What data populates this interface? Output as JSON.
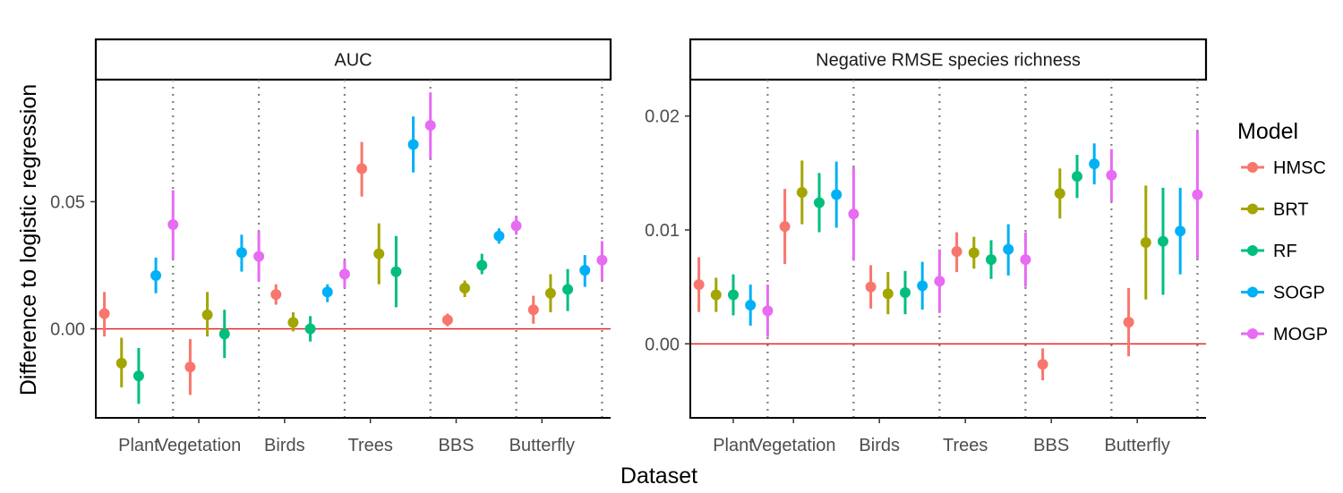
{
  "figure": {
    "ylabel": "Difference to logistic regression",
    "xlabel": "Dataset"
  },
  "legend": {
    "title": "Model",
    "placement": "right"
  },
  "chart_data": {
    "type": "scatter",
    "subtype": "pointrange",
    "categories": [
      "Plant",
      "Vegetation",
      "Birds",
      "Trees",
      "BBS",
      "Butterfly"
    ],
    "models": [
      {
        "name": "HMSC",
        "color": "#F8766D"
      },
      {
        "name": "BRT",
        "color": "#A3A500"
      },
      {
        "name": "RF",
        "color": "#00BF7D"
      },
      {
        "name": "SOGP",
        "color": "#00B0F6"
      },
      {
        "name": "MOGP",
        "color": "#E76BF3"
      }
    ],
    "grid": false,
    "reference_line": {
      "y": 0,
      "color": "#E41A1C"
    },
    "panels": [
      {
        "title": "AUC",
        "ylim": [
          -0.035,
          0.098
        ],
        "yticks": [
          0.0,
          0.05
        ],
        "ytick_labels": [
          "0.00",
          "0.05"
        ],
        "series": [
          {
            "name": "HMSC",
            "values": [
              0.006,
              -0.015,
              0.0135,
              0.063,
              0.0035,
              0.0075
            ],
            "lower": [
              -0.003,
              -0.026,
              0.0095,
              0.052,
              0.001,
              0.002
            ],
            "upper": [
              0.0145,
              -0.004,
              0.0175,
              0.0735,
              0.006,
              0.013
            ]
          },
          {
            "name": "BRT",
            "values": [
              -0.0135,
              0.0055,
              0.0025,
              0.0295,
              0.016,
              0.014
            ],
            "lower": [
              -0.023,
              -0.003,
              -0.001,
              0.0175,
              0.0125,
              0.0065
            ],
            "upper": [
              -0.0035,
              0.0145,
              0.0065,
              0.0415,
              0.019,
              0.0215
            ]
          },
          {
            "name": "RF",
            "values": [
              -0.0185,
              -0.002,
              0.0,
              0.0225,
              0.025,
              0.0155
            ],
            "lower": [
              -0.0295,
              -0.0115,
              -0.005,
              0.0085,
              0.0215,
              0.007
            ],
            "upper": [
              -0.0075,
              0.0075,
              0.005,
              0.0365,
              0.0295,
              0.0235
            ]
          },
          {
            "name": "SOGP",
            "values": [
              0.021,
              0.03,
              0.0145,
              0.0725,
              0.0365,
              0.023
            ],
            "lower": [
              0.014,
              0.0225,
              0.0105,
              0.0615,
              0.0335,
              0.0165
            ],
            "upper": [
              0.028,
              0.037,
              0.0175,
              0.0835,
              0.0395,
              0.029
            ]
          },
          {
            "name": "MOGP",
            "values": [
              0.041,
              0.0285,
              0.0215,
              0.08,
              0.0405,
              0.027
            ],
            "lower": [
              0.0275,
              0.0185,
              0.016,
              0.067,
              0.037,
              0.019
            ],
            "upper": [
              0.0545,
              0.0385,
              0.027,
              0.093,
              0.0445,
              0.0345
            ]
          }
        ]
      },
      {
        "title": "Negative RMSE species richness",
        "ylim": [
          -0.0065,
          0.0232
        ],
        "yticks": [
          0.0,
          0.01,
          0.02
        ],
        "ytick_labels": [
          "0.00",
          "0.01",
          "0.02"
        ],
        "series": [
          {
            "name": "HMSC",
            "values": [
              0.0052,
              0.0103,
              0.005,
              0.0081,
              -0.0018,
              0.0019
            ],
            "lower": [
              0.0028,
              0.007,
              0.0031,
              0.0063,
              -0.0032,
              -0.0011
            ],
            "upper": [
              0.0076,
              0.0136,
              0.0069,
              0.0098,
              -0.0004,
              0.0049
            ]
          },
          {
            "name": "BRT",
            "values": [
              0.0043,
              0.0133,
              0.0044,
              0.008,
              0.0132,
              0.0089
            ],
            "lower": [
              0.0028,
              0.0105,
              0.0026,
              0.0066,
              0.011,
              0.0039
            ],
            "upper": [
              0.0058,
              0.0161,
              0.0063,
              0.0094,
              0.0154,
              0.0139
            ]
          },
          {
            "name": "RF",
            "values": [
              0.0043,
              0.0124,
              0.0045,
              0.0074,
              0.0147,
              0.009
            ],
            "lower": [
              0.0025,
              0.0098,
              0.0026,
              0.0057,
              0.0128,
              0.0043
            ],
            "upper": [
              0.0061,
              0.015,
              0.0064,
              0.0091,
              0.0166,
              0.0137
            ]
          },
          {
            "name": "SOGP",
            "values": [
              0.0034,
              0.0131,
              0.0051,
              0.0083,
              0.0158,
              0.0099
            ],
            "lower": [
              0.0016,
              0.0102,
              0.003,
              0.006,
              0.014,
              0.0061
            ],
            "upper": [
              0.0052,
              0.016,
              0.0072,
              0.0105,
              0.0176,
              0.0137
            ]
          },
          {
            "name": "MOGP",
            "values": [
              0.0029,
              0.0114,
              0.0055,
              0.0074,
              0.0148,
              0.0131
            ],
            "lower": [
              0.0006,
              0.0073,
              0.0027,
              0.005,
              0.0125,
              0.0075
            ],
            "upper": [
              0.0052,
              0.0155,
              0.0083,
              0.0098,
              0.0171,
              0.0187
            ]
          }
        ]
      }
    ]
  }
}
